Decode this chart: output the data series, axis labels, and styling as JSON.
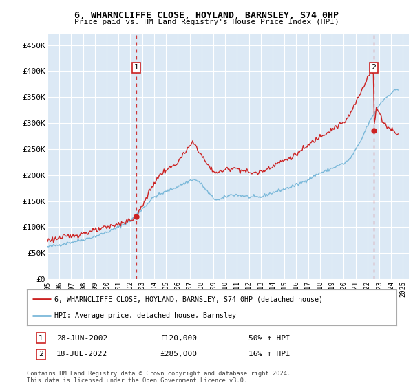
{
  "title": "6, WHARNCLIFFE CLOSE, HOYLAND, BARNSLEY, S74 0HP",
  "subtitle": "Price paid vs. HM Land Registry's House Price Index (HPI)",
  "ylabel_ticks": [
    "£0",
    "£50K",
    "£100K",
    "£150K",
    "£200K",
    "£250K",
    "£300K",
    "£350K",
    "£400K",
    "£450K"
  ],
  "ytick_values": [
    0,
    50000,
    100000,
    150000,
    200000,
    250000,
    300000,
    350000,
    400000,
    450000
  ],
  "ylim": [
    0,
    470000
  ],
  "xlim_start": 1995.0,
  "xlim_end": 2025.5,
  "background_color": "#dce9f5",
  "grid_color": "#ffffff",
  "hpi_color": "#7ab8d9",
  "price_color": "#cc2222",
  "marker_color": "#cc2222",
  "vline_color": "#cc2222",
  "annotation_box_color": "#cc2222",
  "transaction1_date": "28-JUN-2002",
  "transaction1_price": 120000,
  "transaction1_label": "50% ↑ HPI",
  "transaction1_x": 2002.5,
  "transaction2_date": "18-JUL-2022",
  "transaction2_price": 285000,
  "transaction2_label": "16% ↑ HPI",
  "transaction2_x": 2022.54,
  "legend_entry1": "6, WHARNCLIFFE CLOSE, HOYLAND, BARNSLEY, S74 0HP (detached house)",
  "legend_entry2": "HPI: Average price, detached house, Barnsley",
  "footer_line1": "Contains HM Land Registry data © Crown copyright and database right 2024.",
  "footer_line2": "This data is licensed under the Open Government Licence v3.0."
}
